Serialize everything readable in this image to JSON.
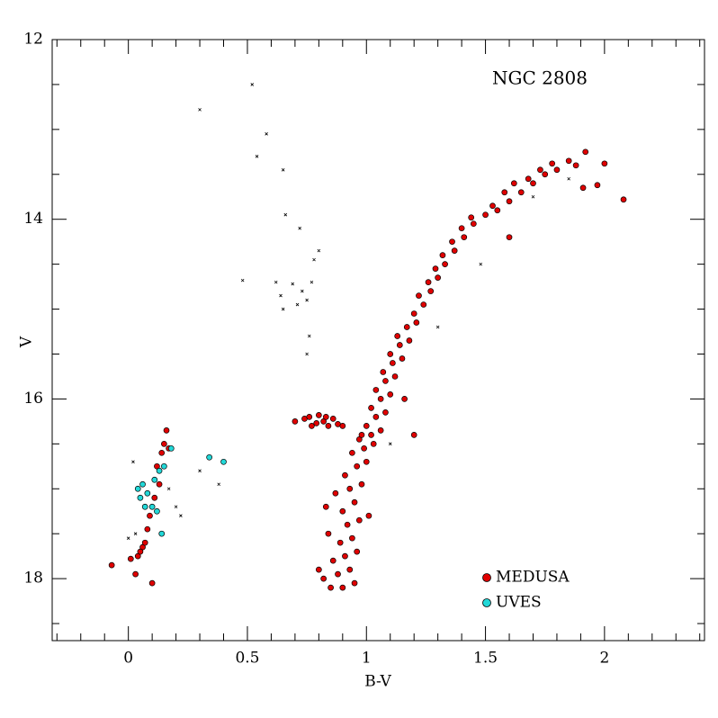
{
  "chart_data": {
    "type": "scatter",
    "annotation": "NGC 2808",
    "x_label": "B-V",
    "y_label": "V",
    "xlim": [
      -0.32,
      2.42
    ],
    "ylim": [
      12,
      18.69
    ],
    "y_inverted": true,
    "xticks": [
      0,
      0.5,
      1,
      1.5,
      2
    ],
    "yticks": [
      12,
      14,
      16,
      18
    ],
    "xminorticks": [
      -0.3,
      -0.2,
      -0.1,
      0.1,
      0.2,
      0.3,
      0.4,
      0.6,
      0.7,
      0.8,
      0.9,
      1.1,
      1.2,
      1.3,
      1.4,
      1.6,
      1.7,
      1.8,
      1.9,
      2.1,
      2.2,
      2.3,
      2.4
    ],
    "yminorticks": [
      12.5,
      13,
      13.5,
      14.5,
      15,
      15.5,
      16.5,
      17,
      17.5,
      18.5
    ],
    "legend": "bottom-right",
    "series": [
      {
        "name": "MEDUSA",
        "color": "#e00000",
        "marker": "circle",
        "x": [
          0.85,
          0.9,
          0.95,
          0.88,
          0.93,
          0.86,
          0.91,
          0.96,
          0.89,
          0.94,
          0.84,
          0.92,
          0.97,
          0.9,
          0.95,
          0.87,
          0.93,
          0.98,
          0.91,
          0.96,
          1.0,
          0.94,
          0.99,
          1.03,
          0.97,
          1.02,
          1.06,
          1.0,
          1.04,
          1.08,
          1.02,
          1.06,
          1.1,
          1.04,
          1.08,
          1.12,
          1.07,
          1.11,
          1.15,
          1.1,
          1.14,
          1.18,
          1.13,
          1.17,
          1.21,
          1.2,
          1.24,
          1.22,
          1.27,
          1.26,
          1.3,
          1.29,
          1.33,
          1.32,
          1.37,
          1.36,
          1.41,
          1.4,
          1.45,
          1.44,
          1.5,
          1.55,
          1.53,
          1.6,
          1.58,
          1.65,
          1.62,
          1.7,
          1.68,
          1.75,
          1.73,
          1.8,
          1.78,
          1.85,
          1.88,
          1.92,
          2.0,
          1.97,
          1.91,
          2.08,
          1.6,
          1.16,
          1.2,
          0.82,
          0.8,
          1.01,
          0.83,
          0.98,
          0.7,
          0.74,
          0.77,
          0.8,
          0.82,
          0.84,
          0.86,
          0.88,
          0.79,
          0.83,
          0.9,
          0.76,
          -0.07,
          0.03,
          0.01,
          0.04,
          0.06,
          0.1,
          0.07,
          0.05,
          0.08,
          0.09,
          0.11,
          0.13,
          0.12,
          0.14,
          0.15,
          0.16,
          0.17
        ],
        "values": [
          18.1,
          18.1,
          18.05,
          17.95,
          17.9,
          17.8,
          17.75,
          17.7,
          17.6,
          17.55,
          17.5,
          17.4,
          17.35,
          17.25,
          17.15,
          17.05,
          17.0,
          16.95,
          16.85,
          16.75,
          16.7,
          16.6,
          16.55,
          16.5,
          16.45,
          16.4,
          16.35,
          16.3,
          16.2,
          16.15,
          16.1,
          16.0,
          15.95,
          15.9,
          15.8,
          15.75,
          15.7,
          15.6,
          15.55,
          15.5,
          15.4,
          15.35,
          15.3,
          15.2,
          15.15,
          15.05,
          14.95,
          14.85,
          14.8,
          14.7,
          14.65,
          14.55,
          14.5,
          14.4,
          14.35,
          14.25,
          14.2,
          14.1,
          14.05,
          13.98,
          13.95,
          13.9,
          13.85,
          13.8,
          13.7,
          13.7,
          13.6,
          13.6,
          13.55,
          13.5,
          13.45,
          13.45,
          13.38,
          13.35,
          13.4,
          13.25,
          13.38,
          13.62,
          13.65,
          13.78,
          14.2,
          16.0,
          16.4,
          18.0,
          17.9,
          17.3,
          17.2,
          16.4,
          16.25,
          16.22,
          16.3,
          16.18,
          16.25,
          16.3,
          16.22,
          16.28,
          16.27,
          16.2,
          16.3,
          16.2,
          17.85,
          17.95,
          17.78,
          17.75,
          17.65,
          18.05,
          17.6,
          17.7,
          17.45,
          17.3,
          17.1,
          16.95,
          16.75,
          16.6,
          16.5,
          16.35,
          16.55
        ]
      },
      {
        "name": "UVES",
        "color": "#22d8d8",
        "marker": "circle",
        "x": [
          0.04,
          0.06,
          0.08,
          0.1,
          0.11,
          0.12,
          0.13,
          0.15,
          0.18,
          0.14,
          0.34,
          0.4,
          0.07,
          0.05
        ],
        "values": [
          17.0,
          16.95,
          17.05,
          17.2,
          16.9,
          17.25,
          16.8,
          16.75,
          16.55,
          17.5,
          16.65,
          16.7,
          17.2,
          17.1
        ]
      },
      {
        "color": "#000000",
        "marker": "cross",
        "x": [
          0.52,
          0.3,
          0.58,
          0.54,
          0.65,
          0.66,
          0.72,
          0.8,
          0.78,
          0.62,
          0.69,
          0.73,
          0.77,
          0.64,
          0.75,
          0.48,
          0.71,
          0.76,
          0.75,
          0.65,
          0.3,
          0.38,
          0.2,
          0.17,
          0.22,
          0.03,
          0.0,
          1.1,
          1.3,
          1.48,
          1.7,
          1.85,
          0.02
        ],
        "values": [
          12.5,
          12.78,
          13.05,
          13.3,
          13.45,
          13.95,
          14.1,
          14.35,
          14.45,
          14.7,
          14.72,
          14.8,
          14.7,
          14.85,
          14.9,
          14.68,
          14.95,
          15.3,
          15.5,
          15.0,
          16.8,
          16.95,
          17.2,
          17.0,
          17.3,
          17.5,
          17.55,
          16.5,
          15.2,
          14.5,
          13.75,
          13.55,
          16.7
        ]
      }
    ]
  }
}
